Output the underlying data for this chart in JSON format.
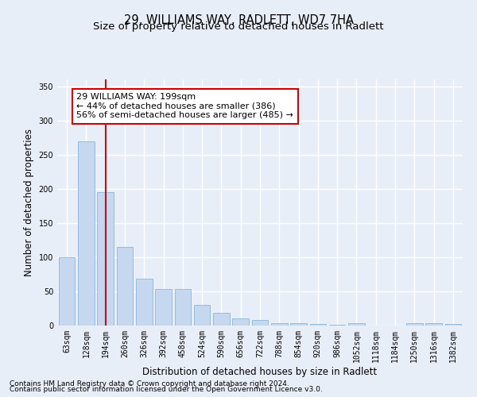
{
  "title": "29, WILLIAMS WAY, RADLETT, WD7 7HA",
  "subtitle": "Size of property relative to detached houses in Radlett",
  "xlabel": "Distribution of detached houses by size in Radlett",
  "ylabel": "Number of detached properties",
  "bar_labels": [
    "63sqm",
    "128sqm",
    "194sqm",
    "260sqm",
    "326sqm",
    "392sqm",
    "458sqm",
    "524sqm",
    "590sqm",
    "656sqm",
    "722sqm",
    "788sqm",
    "854sqm",
    "920sqm",
    "986sqm",
    "1052sqm",
    "1118sqm",
    "1184sqm",
    "1250sqm",
    "1316sqm",
    "1382sqm"
  ],
  "bar_values": [
    100,
    270,
    195,
    115,
    68,
    54,
    54,
    30,
    19,
    11,
    8,
    4,
    4,
    2,
    1,
    3,
    0,
    0,
    4,
    3,
    2
  ],
  "bar_color": "#c5d8f0",
  "bar_edge_color": "#7aadd4",
  "highlight_index": 2,
  "highlight_color": "#cc0000",
  "annotation_line1": "29 WILLIAMS WAY: 199sqm",
  "annotation_line2": "← 44% of detached houses are smaller (386)",
  "annotation_line3": "56% of semi-detached houses are larger (485) →",
  "annotation_box_color": "#ffffff",
  "annotation_box_edgecolor": "#cc0000",
  "ylim": [
    0,
    360
  ],
  "yticks": [
    0,
    50,
    100,
    150,
    200,
    250,
    300,
    350
  ],
  "footer_line1": "Contains HM Land Registry data © Crown copyright and database right 2024.",
  "footer_line2": "Contains public sector information licensed under the Open Government Licence v3.0.",
  "bg_color": "#e8eef8",
  "plot_bg_color": "#e8eef8",
  "grid_color": "#ffffff",
  "title_fontsize": 10.5,
  "subtitle_fontsize": 9.5,
  "axis_label_fontsize": 8.5,
  "tick_fontsize": 7,
  "annotation_fontsize": 8,
  "footer_fontsize": 6.5
}
